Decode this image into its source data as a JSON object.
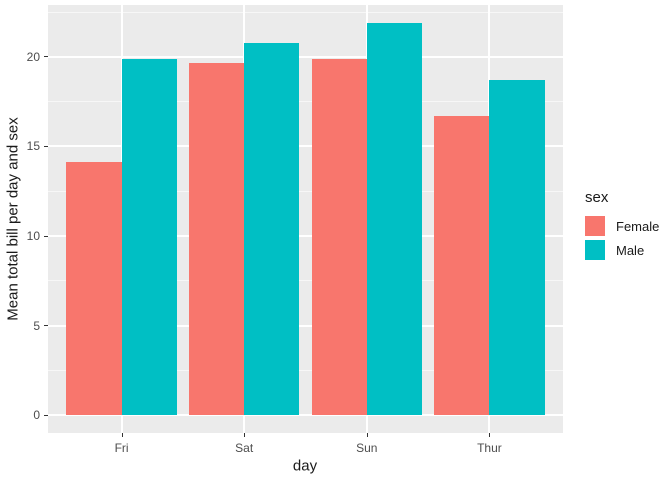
{
  "chart_data": {
    "type": "bar",
    "title": "",
    "xlabel": "day",
    "ylabel": "Mean total bill per day and sex",
    "categories": [
      "Fri",
      "Sat",
      "Sun",
      "Thur"
    ],
    "series": [
      {
        "name": "Female",
        "color": "#F8766D",
        "values": [
          14.15,
          19.68,
          19.87,
          16.72
        ]
      },
      {
        "name": "Male",
        "color": "#00BFC4",
        "values": [
          19.86,
          20.8,
          21.89,
          18.71
        ]
      }
    ],
    "y_ticks": [
      0,
      5,
      10,
      15,
      20
    ],
    "y_minor_ticks": [
      2.5,
      7.5,
      12.5,
      17.5,
      22.5
    ],
    "ylim": [
      -1.0,
      22.9
    ],
    "legend": {
      "title": "sex",
      "position": "right"
    },
    "style": {
      "panel_bg": "#EBEBEB",
      "grid_major_color": "#FFFFFF",
      "grid_minor_color": "#F7F7F7",
      "tick_label_color": "#4D4D4D",
      "axis_title_color": "#1A1A1A"
    }
  }
}
